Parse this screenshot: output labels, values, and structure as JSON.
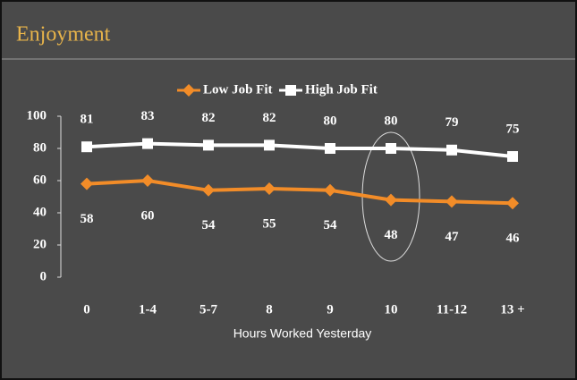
{
  "chart_data": {
    "type": "line",
    "title": "Enjoyment",
    "x_label": "Hours Worked Yesterday",
    "categories": [
      "0",
      "1-4",
      "5-7",
      "8",
      "9",
      "10",
      "11-12",
      "13 +"
    ],
    "series": [
      {
        "name": "Low Job Fit",
        "color": "#f28c28",
        "values": [
          58,
          60,
          54,
          55,
          54,
          48,
          47,
          46
        ]
      },
      {
        "name": "High Job Fit",
        "color": "#ffffff",
        "values": [
          81,
          83,
          82,
          82,
          80,
          80,
          79,
          75
        ]
      }
    ],
    "ylim": [
      0,
      100
    ],
    "yticks": [
      0,
      20,
      40,
      60,
      80,
      100
    ],
    "grid": false,
    "legend": "top"
  }
}
